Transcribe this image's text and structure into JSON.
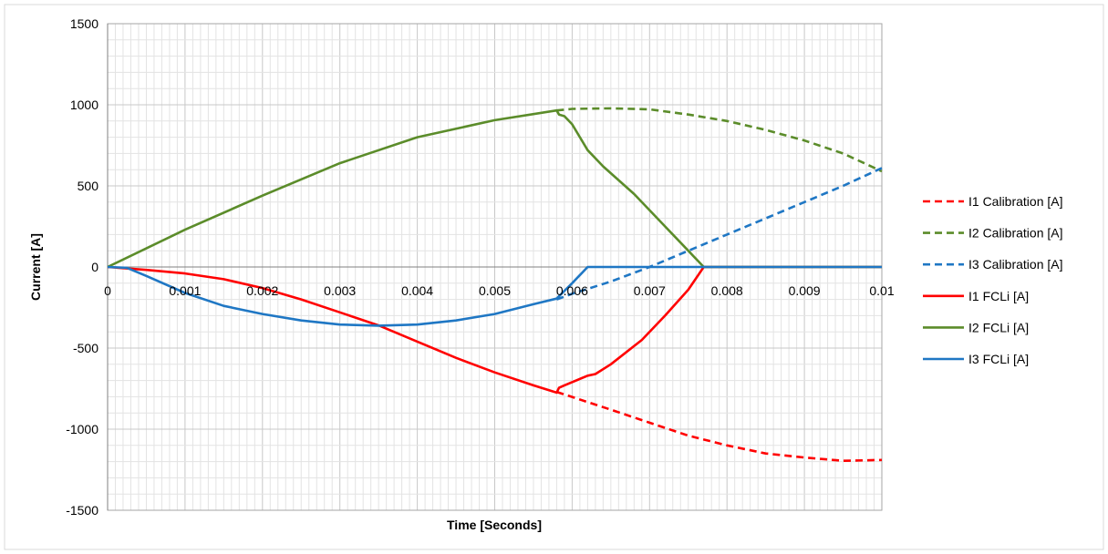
{
  "chart_data": {
    "type": "line",
    "xlabel": "Time [Seconds]",
    "ylabel": "Current [A]",
    "xlim": [
      0,
      0.01
    ],
    "ylim": [
      -1500,
      1500
    ],
    "x_ticks": [
      0,
      0.001,
      0.002,
      0.003,
      0.004,
      0.005,
      0.006,
      0.007,
      0.008,
      0.009,
      0.01
    ],
    "x_tick_labels": [
      "0",
      "0.001",
      "0.002",
      "0.003",
      "0.004",
      "0.005",
      "0.006",
      "0.007",
      "0.008",
      "0.009",
      "0.01"
    ],
    "y_ticks": [
      -1500,
      -1000,
      -500,
      0,
      500,
      1000,
      1500
    ],
    "y_tick_labels": [
      "-1500",
      "-1000",
      "-500",
      "0",
      "500",
      "1000",
      "1500"
    ],
    "grid": true,
    "legend_position": "right",
    "series": [
      {
        "name": "I1 Calibration [A]",
        "color": "#ff0000",
        "dashed": true,
        "points": [
          [
            0.0058,
            -770
          ],
          [
            0.0065,
            -880
          ],
          [
            0.007,
            -960
          ],
          [
            0.0075,
            -1040
          ],
          [
            0.008,
            -1100
          ],
          [
            0.0085,
            -1150
          ],
          [
            0.009,
            -1175
          ],
          [
            0.0095,
            -1195
          ],
          [
            0.01,
            -1190
          ]
        ]
      },
      {
        "name": "I2 Calibration [A]",
        "color": "#5b8c2a",
        "dashed": true,
        "points": [
          [
            0.0058,
            965
          ],
          [
            0.006,
            975
          ],
          [
            0.0065,
            978
          ],
          [
            0.007,
            972
          ],
          [
            0.0075,
            940
          ],
          [
            0.008,
            900
          ],
          [
            0.0085,
            845
          ],
          [
            0.009,
            780
          ],
          [
            0.0095,
            700
          ],
          [
            0.01,
            590
          ]
        ]
      },
      {
        "name": "I3 Calibration [A]",
        "color": "#1f77c4",
        "dashed": true,
        "points": [
          [
            0.0058,
            -200
          ],
          [
            0.006,
            -165
          ],
          [
            0.0065,
            -90
          ],
          [
            0.007,
            0
          ],
          [
            0.0075,
            100
          ],
          [
            0.008,
            200
          ],
          [
            0.0085,
            300
          ],
          [
            0.009,
            400
          ],
          [
            0.0095,
            500
          ],
          [
            0.01,
            610
          ]
        ]
      },
      {
        "name": "I1 FCLi [A]",
        "color": "#ff0000",
        "dashed": false,
        "points": [
          [
            0,
            0
          ],
          [
            0.0005,
            -18
          ],
          [
            0.001,
            -40
          ],
          [
            0.0015,
            -75
          ],
          [
            0.002,
            -130
          ],
          [
            0.0025,
            -200
          ],
          [
            0.003,
            -280
          ],
          [
            0.0035,
            -360
          ],
          [
            0.004,
            -460
          ],
          [
            0.0045,
            -560
          ],
          [
            0.005,
            -650
          ],
          [
            0.0055,
            -730
          ],
          [
            0.0058,
            -775
          ],
          [
            0.00583,
            -745
          ],
          [
            0.0059,
            -730
          ],
          [
            0.0062,
            -670
          ],
          [
            0.0063,
            -660
          ],
          [
            0.0065,
            -600
          ],
          [
            0.0069,
            -450
          ],
          [
            0.0072,
            -300
          ],
          [
            0.0075,
            -140
          ],
          [
            0.0077,
            0
          ],
          [
            0.01,
            0
          ]
        ]
      },
      {
        "name": "I2 FCLi [A]",
        "color": "#5b8c2a",
        "dashed": false,
        "points": [
          [
            0,
            0
          ],
          [
            0.001,
            230
          ],
          [
            0.002,
            440
          ],
          [
            0.003,
            640
          ],
          [
            0.004,
            800
          ],
          [
            0.005,
            905
          ],
          [
            0.0058,
            965
          ],
          [
            0.00583,
            940
          ],
          [
            0.0059,
            930
          ],
          [
            0.006,
            880
          ],
          [
            0.0062,
            720
          ],
          [
            0.0064,
            620
          ],
          [
            0.0068,
            450
          ],
          [
            0.0072,
            250
          ],
          [
            0.0075,
            100
          ],
          [
            0.0077,
            0
          ],
          [
            0.01,
            0
          ]
        ]
      },
      {
        "name": "I3 FCLi [A]",
        "color": "#1f77c4",
        "dashed": false,
        "points": [
          [
            0,
            0
          ],
          [
            0.00025,
            -5
          ],
          [
            0.0005,
            -55
          ],
          [
            0.001,
            -160
          ],
          [
            0.0015,
            -240
          ],
          [
            0.002,
            -290
          ],
          [
            0.0025,
            -330
          ],
          [
            0.003,
            -355
          ],
          [
            0.0035,
            -362
          ],
          [
            0.004,
            -355
          ],
          [
            0.0045,
            -330
          ],
          [
            0.005,
            -290
          ],
          [
            0.0055,
            -230
          ],
          [
            0.0058,
            -195
          ],
          [
            0.006,
            -100
          ],
          [
            0.0062,
            0
          ],
          [
            0.01,
            0
          ]
        ]
      }
    ]
  }
}
